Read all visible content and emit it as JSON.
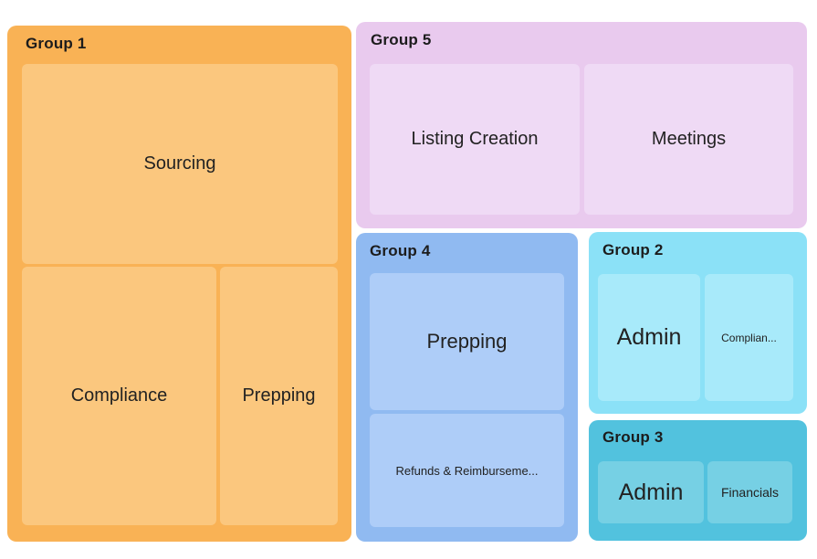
{
  "diagram": {
    "background": "#FFFFFF",
    "text_color": "#1C1C1C",
    "groups": [
      {
        "name": "Group 1",
        "outer_color": "#F9B255",
        "inner_color": "#FBC77E",
        "items": [
          {
            "label": "Sourcing"
          },
          {
            "label": "Compliance"
          },
          {
            "label": "Prepping"
          }
        ]
      },
      {
        "name": "Group 5",
        "outer_color": "#E9CAEE",
        "inner_color": "#EFDAF5",
        "items": [
          {
            "label": "Listing Creation"
          },
          {
            "label": "Meetings"
          }
        ]
      },
      {
        "name": "Group 4",
        "outer_color": "#90BAF1",
        "inner_color": "#AECDF8",
        "items": [
          {
            "label": "Prepping"
          },
          {
            "label": "Refunds & Reimburseme..."
          }
        ]
      },
      {
        "name": "Group 2",
        "outer_color": "#8BE1F7",
        "inner_color": "#A8EAFA",
        "items": [
          {
            "label": "Admin"
          },
          {
            "label": "Complian..."
          }
        ]
      },
      {
        "name": "Group 3",
        "outer_color": "#52C2DE",
        "inner_color": "#76D0E4",
        "items": [
          {
            "label": "Admin"
          },
          {
            "label": "Financials"
          }
        ]
      }
    ]
  }
}
